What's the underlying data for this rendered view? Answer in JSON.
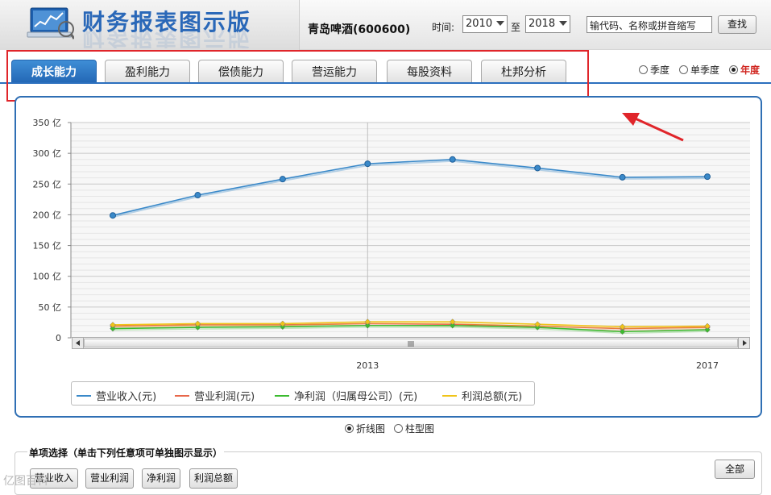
{
  "header": {
    "app_title": "财务报表图示版",
    "stock_name": "青岛啤酒(600600)",
    "time_label": "时间:",
    "from_year": "2010",
    "to_label": "至",
    "to_year": "2018",
    "search_placeholder": "输代码、名称或拼音缩写",
    "search_button": "查找"
  },
  "tabs": [
    {
      "label": "成长能力",
      "active": true
    },
    {
      "label": "盈利能力",
      "active": false
    },
    {
      "label": "偿债能力",
      "active": false
    },
    {
      "label": "营运能力",
      "active": false
    },
    {
      "label": "每股资料",
      "active": false
    },
    {
      "label": "杜邦分析",
      "active": false
    }
  ],
  "period": {
    "options": [
      "季度",
      "单季度",
      "年度"
    ],
    "selected": "年度"
  },
  "chart_type": {
    "options": [
      "折线图",
      "柱型图"
    ],
    "selected": "折线图"
  },
  "single_select": {
    "title": "单项选择（单击下列任意项可单独图示显示）",
    "items": [
      "营业收入",
      "营业利润",
      "净利润",
      "利润总额"
    ],
    "all_button": "全部"
  },
  "watermark": "亿图百科",
  "colors": {
    "accent": "#2b6fbe",
    "highlight": "#e0252a",
    "revenue": "#3a89c9",
    "op_profit": "#e8674a",
    "net_profit": "#3cbb2f",
    "total_profit": "#f0c419"
  },
  "chart_data": {
    "type": "line",
    "x": [
      2010,
      2011,
      2012,
      2013,
      2014,
      2015,
      2016,
      2017
    ],
    "x_tick_labels": [
      "2013",
      "2017"
    ],
    "y_tick_labels": [
      "350 亿",
      "300 亿",
      "250 亿",
      "200 亿",
      "150 亿",
      "100 亿",
      "50 亿",
      "0"
    ],
    "ylim": [
      0,
      350
    ],
    "y_step": 50,
    "grid": true,
    "legend_position": "bottom-left",
    "series": [
      {
        "name": "营业收入(元)",
        "values": [
          199,
          232,
          258,
          283,
          290,
          276,
          261,
          262
        ]
      },
      {
        "name": "营业利润(元)",
        "values": [
          19,
          21,
          21,
          23,
          22,
          19,
          15,
          17
        ]
      },
      {
        "name": "净利润（归属母公司）(元)",
        "values": [
          15,
          17,
          18,
          20,
          20,
          17,
          10,
          13
        ]
      },
      {
        "name": "利润总额(元)",
        "values": [
          21,
          23,
          23,
          26,
          26,
          22,
          18,
          19
        ]
      }
    ]
  }
}
